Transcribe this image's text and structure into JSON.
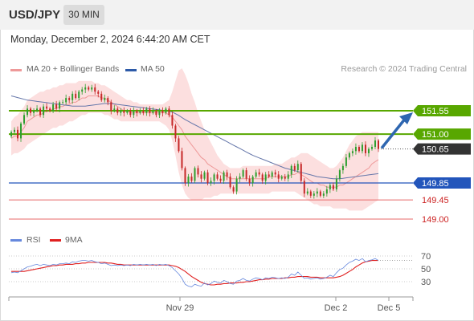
{
  "header": {
    "symbol": "USD/JPY",
    "timeframe": "30 MIN"
  },
  "datetime": "Monday, December 2, 2024 6:44:20 AM CET",
  "legend": {
    "ma20": "MA 20 + Bollinger Bands",
    "ma50": "MA 50",
    "credit": "Research © 2024 Trading Central"
  },
  "rsi_legend": {
    "rsi": "RSI",
    "ma9": "9MA"
  },
  "colors": {
    "green": "#58a700",
    "blue": "#2255bb",
    "red": "#e02020",
    "dark": "#333333",
    "rsi": "#6688dd",
    "band": "#fbd9d9",
    "ma20": "#ee9999",
    "ma50": "#6677aa"
  },
  "chart_data": [
    {
      "type": "candlestick",
      "ylim": [
        148.9,
        152.6
      ],
      "x_ticks": [
        "Nov 29",
        "Dec 2",
        "Dec 5"
      ],
      "levels": [
        {
          "value": 151.55,
          "label": "151.55",
          "kind": "resistance"
        },
        {
          "value": 151.0,
          "label": "151.00",
          "kind": "resistance"
        },
        {
          "value": 150.65,
          "label": "150.65",
          "kind": "current"
        },
        {
          "value": 149.85,
          "label": "149.85",
          "kind": "support"
        },
        {
          "value": 149.45,
          "label": "149.45",
          "kind": "support"
        },
        {
          "value": 149.0,
          "label": "149.00",
          "kind": "support"
        }
      ],
      "close": [
        151.05,
        151.1,
        150.9,
        151.25,
        151.45,
        151.6,
        151.5,
        151.55,
        151.6,
        151.45,
        151.65,
        151.6,
        151.55,
        151.7,
        151.6,
        151.75,
        151.75,
        151.85,
        151.8,
        151.95,
        151.85,
        152.0,
        152.05,
        152.1,
        152.05,
        152.1,
        152.0,
        151.95,
        151.8,
        151.85,
        151.75,
        151.55,
        151.6,
        151.5,
        151.55,
        151.5,
        151.55,
        151.45,
        151.55,
        151.5,
        151.55,
        151.5,
        151.6,
        151.5,
        151.55,
        151.45,
        151.55,
        151.5,
        151.6,
        151.45,
        151.2,
        150.9,
        150.6,
        150.2,
        149.85,
        150.0,
        149.9,
        150.2,
        150.05,
        149.95,
        150.1,
        149.85,
        149.9,
        150.05,
        149.95,
        149.9,
        150.1,
        150.0,
        149.75,
        149.65,
        149.95,
        150.0,
        150.15,
        149.95,
        149.85,
        150.0,
        150.1,
        150.05,
        149.9,
        150.05,
        150.0,
        150.1,
        150.05,
        149.95,
        150.0,
        149.95,
        150.05,
        150.25,
        150.15,
        150.3,
        149.9,
        149.6,
        149.65,
        149.55,
        149.6,
        149.65,
        149.55,
        149.6,
        149.7,
        149.8,
        149.7,
        149.95,
        150.15,
        150.25,
        150.45,
        150.55,
        150.6,
        150.7,
        150.6,
        150.75,
        150.55,
        150.65,
        150.7,
        150.85,
        150.65
      ],
      "ma20": [
        150.9,
        150.95,
        150.95,
        151.05,
        151.15,
        151.3,
        151.35,
        151.4,
        151.45,
        151.45,
        151.5,
        151.55,
        151.55,
        151.6,
        151.6,
        151.65,
        151.65,
        151.7,
        151.7,
        151.75,
        151.75,
        151.8,
        151.85,
        151.85,
        151.9,
        151.9,
        151.9,
        151.9,
        151.85,
        151.85,
        151.8,
        151.75,
        151.7,
        151.65,
        151.6,
        151.55,
        151.55,
        151.5,
        151.5,
        151.5,
        151.5,
        151.5,
        151.5,
        151.5,
        151.5,
        151.5,
        151.5,
        151.5,
        151.5,
        151.45,
        151.4,
        151.3,
        151.2,
        151.1,
        150.95,
        150.85,
        150.75,
        150.65,
        150.55,
        150.45,
        150.4,
        150.3,
        150.25,
        150.2,
        150.15,
        150.1,
        150.05,
        150.0,
        149.95,
        149.95,
        149.95,
        149.95,
        149.95,
        149.95,
        149.95,
        149.95,
        149.95,
        149.95,
        149.95,
        149.95,
        150.0,
        150.0,
        150.0,
        150.0,
        150.0,
        150.0,
        150.0,
        150.05,
        150.05,
        150.1,
        150.05,
        150.0,
        149.95,
        149.9,
        149.85,
        149.85,
        149.8,
        149.8,
        149.75,
        149.75,
        149.75,
        149.75,
        149.8,
        149.8,
        149.85,
        149.9,
        149.95,
        150.0,
        150.05,
        150.1,
        150.15,
        150.2,
        150.3,
        150.35,
        150.4
      ],
      "upper": [
        151.3,
        151.4,
        151.45,
        151.55,
        151.65,
        151.8,
        151.85,
        151.9,
        151.95,
        152.0,
        152.0,
        152.05,
        152.05,
        152.1,
        152.1,
        152.15,
        152.15,
        152.2,
        152.2,
        152.2,
        152.2,
        152.25,
        152.25,
        152.25,
        152.25,
        152.25,
        152.2,
        152.2,
        152.15,
        152.15,
        152.1,
        152.05,
        152.0,
        151.95,
        151.9,
        151.85,
        151.8,
        151.8,
        151.75,
        151.75,
        151.7,
        151.7,
        151.7,
        151.7,
        151.7,
        151.7,
        151.7,
        151.7,
        151.75,
        151.8,
        152.0,
        152.25,
        152.5,
        152.55,
        152.4,
        152.2,
        151.95,
        151.75,
        151.5,
        151.3,
        151.1,
        150.95,
        150.8,
        150.65,
        150.5,
        150.4,
        150.3,
        150.25,
        150.2,
        150.2,
        150.2,
        150.2,
        150.25,
        150.25,
        150.25,
        150.25,
        150.25,
        150.25,
        150.25,
        150.25,
        150.25,
        150.25,
        150.3,
        150.3,
        150.3,
        150.35,
        150.4,
        150.45,
        150.45,
        150.5,
        150.55,
        150.55,
        150.55,
        150.5,
        150.45,
        150.4,
        150.35,
        150.3,
        150.25,
        150.2,
        150.2,
        150.25,
        150.35,
        150.45,
        150.6,
        150.75,
        150.85,
        150.95,
        151.0,
        151.05,
        151.05,
        151.05,
        151.05,
        151.05,
        151.05
      ],
      "lower": [
        150.5,
        150.55,
        150.55,
        150.6,
        150.65,
        150.75,
        150.8,
        150.85,
        150.9,
        150.95,
        151.0,
        151.05,
        151.1,
        151.15,
        151.15,
        151.2,
        151.2,
        151.25,
        151.3,
        151.3,
        151.35,
        151.4,
        151.45,
        151.45,
        151.5,
        151.5,
        151.5,
        151.5,
        151.5,
        151.45,
        151.45,
        151.4,
        151.35,
        151.35,
        151.3,
        151.3,
        151.3,
        151.3,
        151.3,
        151.3,
        151.3,
        151.3,
        151.3,
        151.3,
        151.3,
        151.3,
        151.3,
        151.25,
        151.2,
        151.1,
        150.85,
        150.5,
        150.1,
        149.8,
        149.6,
        149.5,
        149.45,
        149.45,
        149.45,
        149.45,
        149.5,
        149.5,
        149.5,
        149.55,
        149.55,
        149.6,
        149.6,
        149.6,
        149.6,
        149.6,
        149.6,
        149.6,
        149.6,
        149.6,
        149.6,
        149.6,
        149.6,
        149.6,
        149.6,
        149.6,
        149.6,
        149.65,
        149.65,
        149.65,
        149.65,
        149.65,
        149.65,
        149.65,
        149.65,
        149.6,
        149.55,
        149.5,
        149.45,
        149.4,
        149.35,
        149.35,
        149.3,
        149.3,
        149.3,
        149.3,
        149.25,
        149.25,
        149.25,
        149.25,
        149.25,
        149.2,
        149.2,
        149.2,
        149.2,
        149.2,
        149.25,
        149.3,
        149.35,
        149.4,
        149.45
      ],
      "ma50": [
        151.9,
        151.88,
        151.86,
        151.84,
        151.82,
        151.8,
        151.79,
        151.78,
        151.77,
        151.76,
        151.75,
        151.74,
        151.73,
        151.72,
        151.71,
        151.7,
        151.69,
        151.68,
        151.67,
        151.66,
        151.66,
        151.66,
        151.66,
        151.66,
        151.67,
        151.68,
        151.69,
        151.7,
        151.71,
        151.72,
        151.72,
        151.72,
        151.71,
        151.7,
        151.69,
        151.68,
        151.67,
        151.66,
        151.65,
        151.64,
        151.63,
        151.62,
        151.61,
        151.6,
        151.59,
        151.58,
        151.57,
        151.56,
        151.55,
        151.54,
        151.52,
        151.48,
        151.44,
        151.39,
        151.34,
        151.3,
        151.26,
        151.22,
        151.18,
        151.14,
        151.1,
        151.06,
        151.02,
        150.98,
        150.94,
        150.9,
        150.86,
        150.82,
        150.78,
        150.74,
        150.7,
        150.66,
        150.62,
        150.58,
        150.54,
        150.5,
        150.47,
        150.44,
        150.41,
        150.38,
        150.35,
        150.32,
        150.29,
        150.26,
        150.23,
        150.2,
        150.18,
        150.16,
        150.14,
        150.12,
        150.1,
        150.08,
        150.06,
        150.04,
        150.02,
        150.0,
        149.99,
        149.98,
        149.97,
        149.96,
        149.95,
        149.95,
        149.95,
        149.96,
        149.97,
        149.98,
        149.99,
        150.0,
        150.01,
        150.02,
        150.03,
        150.04,
        150.05,
        150.06,
        150.07
      ],
      "forecast": {
        "from": 150.65,
        "to": 151.55
      }
    },
    {
      "type": "line",
      "name": "RSI",
      "ylim": [
        0,
        100
      ],
      "y_ticks": [
        70,
        50,
        30
      ],
      "rsi": [
        44,
        45,
        44,
        47,
        50,
        53,
        54,
        56,
        57,
        55,
        57,
        56,
        55,
        57,
        56,
        58,
        58,
        59,
        58,
        61,
        60,
        62,
        63,
        63,
        62,
        63,
        61,
        60,
        58,
        59,
        57,
        55,
        56,
        55,
        56,
        55,
        56,
        55,
        57,
        56,
        57,
        56,
        57,
        56,
        57,
        55,
        57,
        56,
        57,
        55,
        52,
        47,
        42,
        35,
        26,
        23,
        22,
        26,
        24,
        23,
        28,
        25,
        27,
        31,
        29,
        28,
        32,
        30,
        27,
        26,
        31,
        32,
        35,
        32,
        31,
        34,
        36,
        35,
        33,
        36,
        35,
        37,
        36,
        35,
        36,
        35,
        37,
        42,
        40,
        45,
        40,
        35,
        36,
        34,
        35,
        36,
        34,
        35,
        37,
        40,
        38,
        44,
        49,
        51,
        56,
        60,
        62,
        65,
        63,
        66,
        61,
        63,
        64,
        66,
        63
      ],
      "ma9": [
        46,
        46,
        46,
        46,
        46,
        47,
        48,
        49,
        50,
        51,
        52,
        53,
        54,
        55,
        55,
        56,
        56,
        57,
        57,
        57,
        58,
        58,
        59,
        59,
        60,
        60,
        60,
        60,
        60,
        60,
        59,
        59,
        58,
        57,
        57,
        56,
        56,
        56,
        56,
        56,
        56,
        56,
        56,
        56,
        56,
        56,
        56,
        56,
        56,
        56,
        55,
        54,
        52,
        49,
        46,
        42,
        38,
        35,
        32,
        29,
        27,
        26,
        25,
        25,
        26,
        26,
        27,
        27,
        28,
        28,
        28,
        29,
        29,
        30,
        30,
        31,
        32,
        33,
        33,
        34,
        34,
        35,
        35,
        35,
        35,
        36,
        36,
        37,
        37,
        38,
        38,
        38,
        38,
        37,
        37,
        37,
        36,
        36,
        36,
        36,
        36,
        37,
        38,
        40,
        43,
        46,
        49,
        53,
        56,
        59,
        61,
        62,
        63,
        63,
        63
      ]
    }
  ]
}
